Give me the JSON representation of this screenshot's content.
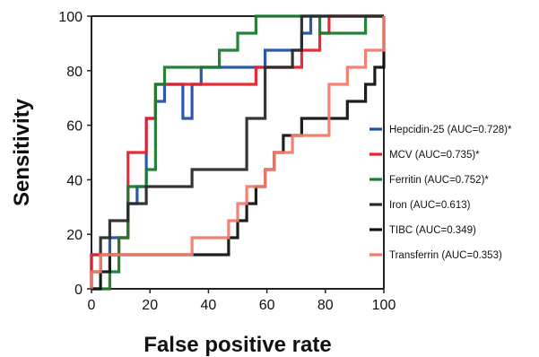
{
  "chart_data": {
    "type": "line",
    "title": "",
    "xlabel": "False positive rate",
    "ylabel": "Sensitivity",
    "xlim": [
      0,
      100
    ],
    "ylim": [
      0,
      100
    ],
    "xticks": [
      "0",
      "20",
      "40",
      "60",
      "80",
      "100"
    ],
    "yticks": [
      "0",
      "20",
      "40",
      "60",
      "80",
      "100"
    ],
    "grid": false,
    "legend_position": "right",
    "series": [
      {
        "name": "Hepcidin-25 (AUC=0.728)*",
        "color": "#1f4fa8",
        "points": [
          [
            0,
            0
          ],
          [
            0,
            6.25
          ],
          [
            0,
            12.5
          ],
          [
            6.25,
            12.5
          ],
          [
            6.25,
            18.75
          ],
          [
            12.5,
            18.75
          ],
          [
            12.5,
            31.25
          ],
          [
            15.6,
            31.25
          ],
          [
            15.6,
            37.5
          ],
          [
            18.75,
            37.5
          ],
          [
            18.75,
            62.5
          ],
          [
            21.9,
            62.5
          ],
          [
            21.9,
            68.75
          ],
          [
            25,
            68.75
          ],
          [
            25,
            75
          ],
          [
            31.25,
            75
          ],
          [
            31.25,
            62.5
          ],
          [
            34.4,
            62.5
          ],
          [
            34.4,
            75
          ],
          [
            37.5,
            75
          ],
          [
            37.5,
            81.25
          ],
          [
            59.4,
            81.25
          ],
          [
            59.4,
            87.5
          ],
          [
            71.9,
            87.5
          ],
          [
            71.9,
            93.75
          ],
          [
            75,
            93.75
          ],
          [
            75,
            100
          ],
          [
            100,
            100
          ]
        ]
      },
      {
        "name": "MCV (AUC=0.735)*",
        "color": "#e8202a",
        "points": [
          [
            0,
            0
          ],
          [
            0,
            12.5
          ],
          [
            9.4,
            12.5
          ],
          [
            9.4,
            18.75
          ],
          [
            12.5,
            18.75
          ],
          [
            12.5,
            50
          ],
          [
            18.75,
            50
          ],
          [
            18.75,
            62.5
          ],
          [
            21.9,
            62.5
          ],
          [
            21.9,
            75
          ],
          [
            56.25,
            75
          ],
          [
            56.25,
            81.25
          ],
          [
            71.9,
            81.25
          ],
          [
            71.9,
            87.5
          ],
          [
            78.1,
            87.5
          ],
          [
            78.1,
            93.75
          ],
          [
            81.25,
            93.75
          ],
          [
            81.25,
            100
          ],
          [
            100,
            100
          ]
        ]
      },
      {
        "name": "Ferritin (AUC=0.752)*",
        "color": "#1a7a2e",
        "points": [
          [
            0,
            0
          ],
          [
            6.25,
            0
          ],
          [
            6.25,
            6.25
          ],
          [
            9.4,
            6.25
          ],
          [
            9.4,
            18.75
          ],
          [
            12.5,
            18.75
          ],
          [
            12.5,
            37.5
          ],
          [
            18.75,
            37.5
          ],
          [
            18.75,
            43.75
          ],
          [
            21.9,
            43.75
          ],
          [
            21.9,
            75
          ],
          [
            25,
            75
          ],
          [
            25,
            81.25
          ],
          [
            43.75,
            81.25
          ],
          [
            43.75,
            87.5
          ],
          [
            50,
            87.5
          ],
          [
            50,
            93.75
          ],
          [
            56.25,
            93.75
          ],
          [
            56.25,
            100
          ],
          [
            78.1,
            100
          ],
          [
            78.1,
            93.75
          ],
          [
            93.75,
            93.75
          ],
          [
            93.75,
            100
          ],
          [
            100,
            100
          ]
        ]
      },
      {
        "name": "Iron (AUC=0.613)",
        "color": "#2a2a2a",
        "points": [
          [
            0,
            0
          ],
          [
            0,
            6.25
          ],
          [
            3.1,
            6.25
          ],
          [
            3.1,
            18.75
          ],
          [
            6.25,
            18.75
          ],
          [
            6.25,
            25
          ],
          [
            12.5,
            25
          ],
          [
            12.5,
            31.25
          ],
          [
            18.75,
            31.25
          ],
          [
            18.75,
            37.5
          ],
          [
            34.4,
            37.5
          ],
          [
            34.4,
            43.75
          ],
          [
            53.1,
            43.75
          ],
          [
            53.1,
            62.5
          ],
          [
            59.4,
            62.5
          ],
          [
            59.4,
            81.25
          ],
          [
            68.75,
            81.25
          ],
          [
            68.75,
            87.5
          ],
          [
            71.9,
            87.5
          ],
          [
            71.9,
            100
          ],
          [
            100,
            100
          ]
        ]
      },
      {
        "name": "TIBC (AUC=0.349)",
        "color": "#111111",
        "points": [
          [
            0,
            0
          ],
          [
            3.1,
            0
          ],
          [
            3.1,
            6.25
          ],
          [
            6.25,
            6.25
          ],
          [
            6.25,
            12.5
          ],
          [
            34.4,
            12.5
          ],
          [
            34.4,
            12.5
          ],
          [
            43.75,
            12.5
          ],
          [
            43.75,
            12.5
          ],
          [
            46.9,
            12.5
          ],
          [
            46.9,
            18.75
          ],
          [
            50,
            18.75
          ],
          [
            50,
            25
          ],
          [
            53.1,
            25
          ],
          [
            53.1,
            31.25
          ],
          [
            56.25,
            31.25
          ],
          [
            56.25,
            37.5
          ],
          [
            59.4,
            37.5
          ],
          [
            59.4,
            43.75
          ],
          [
            62.5,
            43.75
          ],
          [
            62.5,
            50
          ],
          [
            65.6,
            50
          ],
          [
            65.6,
            56.25
          ],
          [
            71.9,
            56.25
          ],
          [
            71.9,
            62.5
          ],
          [
            87.5,
            62.5
          ],
          [
            87.5,
            68.75
          ],
          [
            93.75,
            68.75
          ],
          [
            93.75,
            75
          ],
          [
            96.9,
            75
          ],
          [
            96.9,
            81.25
          ],
          [
            100,
            81.25
          ],
          [
            100,
            100
          ]
        ]
      },
      {
        "name": "Transferrin (AUC=0.353)",
        "color": "#f47a6a",
        "points": [
          [
            0,
            0
          ],
          [
            0,
            6.25
          ],
          [
            3.1,
            6.25
          ],
          [
            3.1,
            12.5
          ],
          [
            34.4,
            12.5
          ],
          [
            34.4,
            18.75
          ],
          [
            46.9,
            18.75
          ],
          [
            46.9,
            25
          ],
          [
            50,
            25
          ],
          [
            50,
            31.25
          ],
          [
            53.1,
            31.25
          ],
          [
            53.1,
            37.5
          ],
          [
            59.4,
            37.5
          ],
          [
            59.4,
            43.75
          ],
          [
            62.5,
            43.75
          ],
          [
            62.5,
            50
          ],
          [
            68.75,
            50
          ],
          [
            68.75,
            56.25
          ],
          [
            81.25,
            56.25
          ],
          [
            81.25,
            75
          ],
          [
            87.5,
            75
          ],
          [
            87.5,
            81.25
          ],
          [
            93.75,
            81.25
          ],
          [
            93.75,
            87.5
          ],
          [
            100,
            87.5
          ],
          [
            100,
            100
          ]
        ]
      }
    ]
  }
}
